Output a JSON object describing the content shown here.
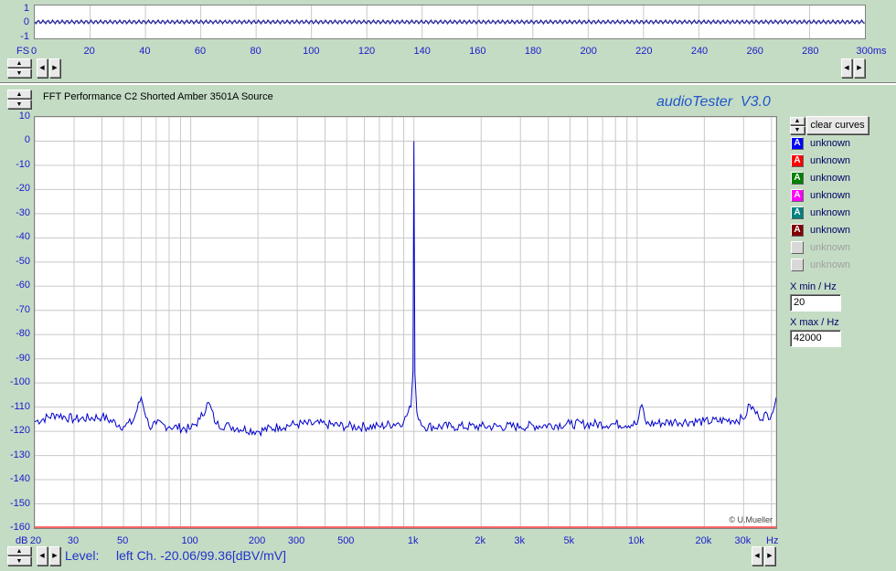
{
  "top_scope": {
    "y_ticks": [
      "1",
      "0",
      "-1"
    ],
    "fs_label": "FS",
    "x_ticks": [
      "0",
      "20",
      "40",
      "60",
      "80",
      "100",
      "120",
      "140",
      "160",
      "180",
      "200",
      "220",
      "240",
      "260",
      "280",
      "300ms"
    ]
  },
  "fft": {
    "title": "FFT Performance C2 Shorted Amber 3501A Source",
    "brand": "audioTester  V3.0",
    "watermark": "© U.Mueller",
    "y_ticks": [
      "10",
      "0",
      "-10",
      "-20",
      "-30",
      "-40",
      "-50",
      "-60",
      "-70",
      "-80",
      "-90",
      "-100",
      "-110",
      "-120",
      "-130",
      "-140",
      "-150",
      "-160"
    ],
    "y_unit": "dB",
    "x_ticks": [
      "20",
      "30",
      "50",
      "100",
      "200",
      "300",
      "500",
      "1k",
      "2k",
      "3k",
      "5k",
      "10k",
      "20k",
      "30k"
    ],
    "x_unit": "Hz",
    "level_label": "Level:",
    "level_value": "left Ch. -20.06/99.36[dBV/mV]"
  },
  "panel": {
    "clear_curves": "clear curves",
    "curves": [
      {
        "label": "unknown",
        "color": "#0000ff",
        "glyph": "A",
        "enabled": true
      },
      {
        "label": "unknown",
        "color": "#ff0000",
        "glyph": "A",
        "enabled": true
      },
      {
        "label": "unknown",
        "color": "#008000",
        "glyph": "A",
        "enabled": true
      },
      {
        "label": "unknown",
        "color": "#ff00ff",
        "glyph": "A",
        "enabled": true
      },
      {
        "label": "unknown",
        "color": "#008080",
        "glyph": "A",
        "enabled": true
      },
      {
        "label": "unknown",
        "color": "#800000",
        "glyph": "A",
        "enabled": true
      },
      {
        "label": "unknown",
        "color": "#d8d8d8",
        "glyph": "",
        "enabled": false
      },
      {
        "label": "unknown",
        "color": "#d8d8d8",
        "glyph": "",
        "enabled": false
      }
    ],
    "xmin_label": "X min / Hz",
    "xmin_value": "20",
    "xmax_label": "X max / Hz",
    "xmax_value": "42000"
  },
  "chart_data": {
    "type": "line",
    "title": "FFT Performance C2 Shorted Amber 3501A Source",
    "xlabel": "Hz",
    "ylabel": "dB",
    "xscale": "log",
    "xlim": [
      20,
      42000
    ],
    "ylim": [
      -160,
      10
    ],
    "grid": true,
    "series": [
      {
        "color": "#0000cc",
        "x": [
          20,
          25,
          30,
          40,
          50,
          55,
          60,
          65,
          70,
          80,
          100,
          110,
          120,
          130,
          150,
          200,
          250,
          300,
          400,
          500,
          700,
          900,
          970,
          990,
          1000,
          1010,
          1030,
          1100,
          1500,
          2000,
          3000,
          5000,
          8000,
          10000,
          10500,
          11000,
          15000,
          20000,
          30000,
          32000,
          35000,
          40000,
          42000
        ],
        "y": [
          -116,
          -113,
          -115,
          -114,
          -118,
          -116,
          -106,
          -118,
          -117,
          -118,
          -119,
          -115,
          -108,
          -117,
          -118,
          -120,
          -118,
          -117,
          -117,
          -118,
          -118,
          -116,
          -110,
          -95,
          0,
          -96,
          -112,
          -118,
          -118,
          -118,
          -118,
          -117,
          -117,
          -117,
          -109,
          -117,
          -116,
          -116,
          -115,
          -109,
          -114,
          -113,
          -106
        ]
      }
    ]
  }
}
